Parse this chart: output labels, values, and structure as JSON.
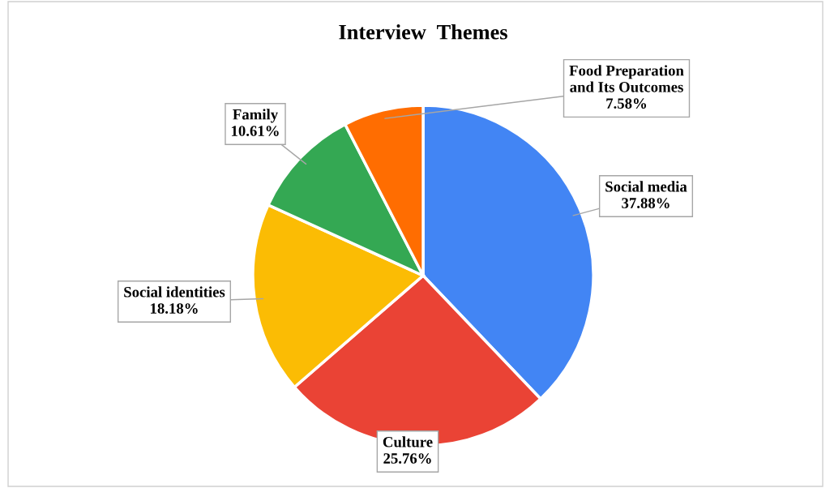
{
  "chart_data": {
    "type": "pie",
    "title": "Interview  Themes",
    "categories": [
      "Social media",
      "Culture",
      "Social identities",
      "Family",
      "Food Preparation\nand Its Outcomes"
    ],
    "values": [
      37.88,
      25.76,
      18.18,
      10.61,
      7.58
    ],
    "colors": [
      "#4285f4",
      "#ea4335",
      "#fbbc04",
      "#34a853",
      "#ff6d01"
    ],
    "value_labels": [
      "37.88%",
      "25.76%",
      "18.18%",
      "10.61%",
      "7.58%"
    ],
    "legend": false
  }
}
